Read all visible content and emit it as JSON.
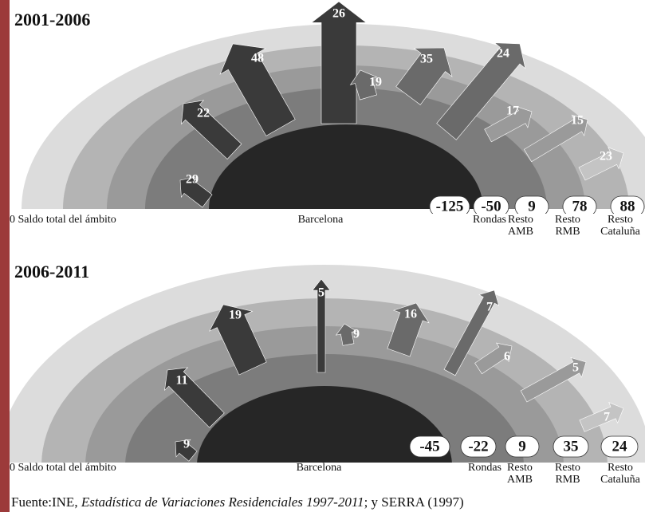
{
  "panels": [
    {
      "period": "2001-2006",
      "arrow_values": [
        "29",
        "22",
        "48",
        "26",
        "19",
        "35",
        "24",
        "17",
        "15",
        "23"
      ],
      "balances": [
        "-125",
        "-50",
        "9",
        "78",
        "88"
      ],
      "axis_left": "0 Saldo total del ámbito",
      "axis_labels": [
        "Barcelona",
        "Rondas",
        "Resto\nAMB",
        "Resto\nRMB",
        "Resto\nCataluña"
      ]
    },
    {
      "period": "2006-2011",
      "arrow_values": [
        "9",
        "11",
        "19",
        "5",
        "9",
        "16",
        "7",
        "6",
        "5",
        "7"
      ],
      "balances": [
        "-45",
        "-22",
        "9",
        "35",
        "24"
      ],
      "axis_left": "0 Saldo total del ámbito",
      "axis_labels": [
        "Barcelona",
        "Rondas",
        "Resto\nAMB",
        "Resto\nRMB",
        "Resto\nCataluña"
      ]
    }
  ],
  "source": {
    "prefix": "Fuente:INE, ",
    "title": "Estadística de Variaciones Residenciales 1997-2011",
    "suffix": "; y SERRA (1997)"
  },
  "colors": {
    "ring_outer": "#dcdcdc",
    "ring_4": "#b4b4b4",
    "ring_3": "#9a9a9a",
    "ring_2": "#7c7c7c",
    "core": "#262626",
    "arrow_dark": "#3a3a3a",
    "arrow_mid": "#6a6a6a",
    "arrow_light": "#9a9a9a",
    "arrow_pale": "#c4c4c4"
  }
}
